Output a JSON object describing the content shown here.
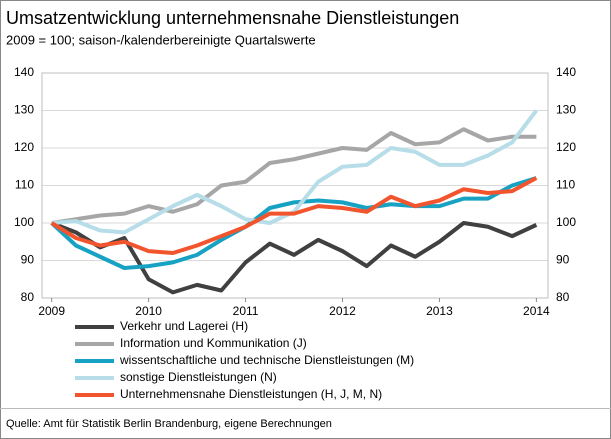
{
  "chart_data": {
    "type": "line",
    "title": "Umsatzentwicklung unternehmensnahe Dienstleistungen",
    "subtitle": "2009 = 100; saison-/kalenderbereinigte Quartalswerte",
    "source": "Quelle: Amt für Statistik Berlin Brandenburg, eigene Berechnungen",
    "x": [
      2009,
      2009.25,
      2009.5,
      2009.75,
      2010,
      2010.25,
      2010.5,
      2010.75,
      2011,
      2011.25,
      2011.5,
      2011.75,
      2012,
      2012.25,
      2012.5,
      2012.75,
      2013,
      2013.25,
      2013.5,
      2013.75,
      2014
    ],
    "xlim": [
      2008.9,
      2014.12
    ],
    "xticks": [
      2009,
      2010,
      2011,
      2012,
      2013,
      2014
    ],
    "ylim": [
      80,
      140
    ],
    "yticks": [
      80,
      90,
      100,
      110,
      120,
      130,
      140
    ],
    "y2lim": [
      80,
      140
    ],
    "y2ticks": [
      80,
      90,
      100,
      110,
      120,
      130,
      140
    ],
    "grid": true,
    "series": [
      {
        "name": "Verkehr und Lagerei (H)",
        "color": "#404040",
        "values": [
          100,
          97.5,
          93.5,
          96,
          85,
          81.5,
          83.5,
          82,
          89.5,
          94.5,
          91.5,
          95.5,
          92.5,
          88.5,
          94,
          91,
          95,
          100,
          99,
          96.5,
          99.5
        ]
      },
      {
        "name": "Information und Kommunikation (J)",
        "color": "#a6a6a6",
        "values": [
          100,
          101,
          102,
          102.5,
          104.5,
          103,
          105,
          110,
          111,
          116,
          117,
          118.5,
          120,
          119.5,
          124,
          121,
          121.5,
          125,
          122,
          123,
          123
        ]
      },
      {
        "name": "wissentschaftliche und technische Dienstleistungen (M)",
        "color": "#17a2c4",
        "values": [
          100,
          94,
          91,
          88,
          88.5,
          89.5,
          91.5,
          95.5,
          99,
          104,
          105.5,
          106,
          105.5,
          104,
          105,
          104.5,
          104.5,
          106.5,
          106.5,
          110,
          112
        ]
      },
      {
        "name": "sonstige Dienstleistungen (N)",
        "color": "#b7dde8",
        "values": [
          100,
          100.5,
          98,
          97.5,
          101,
          104.5,
          107.5,
          104.5,
          101,
          100,
          103,
          111,
          115,
          115.5,
          120,
          119,
          115.5,
          115.5,
          118,
          121.5,
          130
        ]
      },
      {
        "name": "Unternehmensnahe Dienstleistungen (H, J, M, N)",
        "color": "#f2542d",
        "values": [
          100,
          96,
          94,
          95,
          92.5,
          92,
          94,
          96.5,
          99,
          102.5,
          102.5,
          104.5,
          104,
          103,
          107,
          104.5,
          106,
          109,
          108,
          108.5,
          112
        ]
      }
    ]
  }
}
